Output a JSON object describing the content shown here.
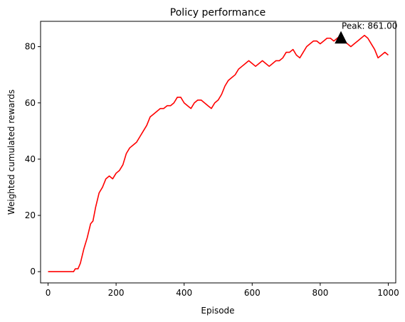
{
  "chart_data": {
    "type": "line",
    "title": "Policy performance",
    "xlabel": "Episode",
    "ylabel": "Weighted cumulated rewards",
    "xlim": [
      -22,
      1022
    ],
    "ylim": [
      -4,
      89
    ],
    "x_ticks": [
      0,
      200,
      400,
      600,
      800,
      1000
    ],
    "y_ticks": [
      0,
      20,
      40,
      60,
      80
    ],
    "grid": false,
    "series": [
      {
        "color": "#ff0000",
        "points": [
          [
            0,
            0
          ],
          [
            75,
            0
          ],
          [
            80,
            1
          ],
          [
            88,
            1
          ],
          [
            95,
            3
          ],
          [
            105,
            8
          ],
          [
            115,
            12
          ],
          [
            125,
            17
          ],
          [
            132,
            18
          ],
          [
            140,
            23
          ],
          [
            150,
            28
          ],
          [
            160,
            30
          ],
          [
            170,
            33
          ],
          [
            180,
            34
          ],
          [
            190,
            33
          ],
          [
            200,
            35
          ],
          [
            210,
            36
          ],
          [
            220,
            38
          ],
          [
            230,
            42
          ],
          [
            240,
            44
          ],
          [
            250,
            45
          ],
          [
            260,
            46
          ],
          [
            270,
            48
          ],
          [
            280,
            50
          ],
          [
            290,
            52
          ],
          [
            300,
            55
          ],
          [
            310,
            56
          ],
          [
            320,
            57
          ],
          [
            330,
            58
          ],
          [
            340,
            58
          ],
          [
            350,
            59
          ],
          [
            360,
            59
          ],
          [
            370,
            60
          ],
          [
            380,
            62
          ],
          [
            390,
            62
          ],
          [
            400,
            60
          ],
          [
            410,
            59
          ],
          [
            420,
            58
          ],
          [
            430,
            60
          ],
          [
            440,
            61
          ],
          [
            450,
            61
          ],
          [
            460,
            60
          ],
          [
            470,
            59
          ],
          [
            480,
            58
          ],
          [
            490,
            60
          ],
          [
            500,
            61
          ],
          [
            510,
            63
          ],
          [
            520,
            66
          ],
          [
            530,
            68
          ],
          [
            540,
            69
          ],
          [
            550,
            70
          ],
          [
            560,
            72
          ],
          [
            570,
            73
          ],
          [
            580,
            74
          ],
          [
            590,
            75
          ],
          [
            600,
            74
          ],
          [
            610,
            73
          ],
          [
            620,
            74
          ],
          [
            630,
            75
          ],
          [
            640,
            74
          ],
          [
            650,
            73
          ],
          [
            660,
            74
          ],
          [
            670,
            75
          ],
          [
            680,
            75
          ],
          [
            690,
            76
          ],
          [
            700,
            78
          ],
          [
            710,
            78
          ],
          [
            720,
            79
          ],
          [
            730,
            77
          ],
          [
            740,
            76
          ],
          [
            750,
            78
          ],
          [
            760,
            80
          ],
          [
            770,
            81
          ],
          [
            780,
            82
          ],
          [
            790,
            82
          ],
          [
            800,
            81
          ],
          [
            810,
            82
          ],
          [
            820,
            83
          ],
          [
            830,
            83
          ],
          [
            840,
            82
          ],
          [
            850,
            83
          ],
          [
            861,
            84
          ],
          [
            870,
            82
          ],
          [
            880,
            81
          ],
          [
            890,
            80
          ],
          [
            900,
            81
          ],
          [
            910,
            82
          ],
          [
            920,
            83
          ],
          [
            930,
            84
          ],
          [
            940,
            83
          ],
          [
            950,
            81
          ],
          [
            960,
            79
          ],
          [
            970,
            76
          ],
          [
            980,
            77
          ],
          [
            990,
            78
          ],
          [
            1000,
            77
          ]
        ]
      }
    ],
    "annotation": {
      "text": "Peak: 861.00",
      "x": 861,
      "y": 83,
      "marker": "triangle",
      "marker_color": "#000000"
    }
  }
}
